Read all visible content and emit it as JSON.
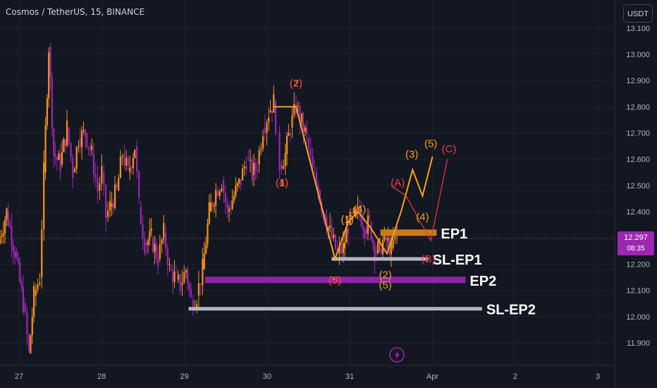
{
  "header": {
    "title": "Cosmos / TetherUS, 15, BINANCE",
    "currency_label": "USDT"
  },
  "price_tag": {
    "price": "12.297",
    "countdown": "08:35"
  },
  "colors": {
    "background": "#131722",
    "grid": "#1e222d",
    "axis_text": "#b2b5be",
    "candle_up": "#f7931a",
    "candle_down": "#9c27b0",
    "wave_orange": "#f7a21b",
    "wave_red": "#f23645",
    "ep1": "#c77c1a",
    "ep2": "#8e24aa",
    "sl": "#b2b5be",
    "price_line": "#9c27b0"
  },
  "icons": {
    "lightning": "lightning-icon"
  },
  "chart_data": {
    "type": "candlestick",
    "title": "Cosmos / TetherUS, 15, BINANCE",
    "x_axis": {
      "ticks": [
        {
          "label": "27",
          "day": 27
        },
        {
          "label": "28",
          "day": 28
        },
        {
          "label": "29",
          "day": 29
        },
        {
          "label": "30",
          "day": 30
        },
        {
          "label": "31",
          "day": 31
        },
        {
          "label": "Apr",
          "day": 32
        },
        {
          "label": "2",
          "day": 33
        },
        {
          "label": "3",
          "day": 34
        }
      ]
    },
    "y_axis": {
      "ticks": [
        "13.100",
        "13.000",
        "12.900",
        "12.800",
        "12.700",
        "12.600",
        "12.500",
        "12.400",
        "12.300",
        "12.200",
        "12.100",
        "12.000",
        "11.900"
      ],
      "range": [
        11.82,
        13.12
      ]
    },
    "price_path": [
      [
        26.75,
        12.28
      ],
      [
        26.85,
        12.4
      ],
      [
        26.95,
        12.25
      ],
      [
        27.05,
        12.05
      ],
      [
        27.12,
        11.86
      ],
      [
        27.18,
        12.08
      ],
      [
        27.25,
        12.15
      ],
      [
        27.3,
        12.55
      ],
      [
        27.36,
        13.03
      ],
      [
        27.42,
        12.62
      ],
      [
        27.5,
        12.58
      ],
      [
        27.58,
        12.72
      ],
      [
        27.65,
        12.55
      ],
      [
        27.72,
        12.68
      ],
      [
        27.8,
        12.7
      ],
      [
        27.88,
        12.62
      ],
      [
        27.95,
        12.48
      ],
      [
        28.0,
        12.55
      ],
      [
        28.05,
        12.38
      ],
      [
        28.1,
        12.42
      ],
      [
        28.18,
        12.48
      ],
      [
        28.25,
        12.62
      ],
      [
        28.32,
        12.55
      ],
      [
        28.4,
        12.65
      ],
      [
        28.45,
        12.42
      ],
      [
        28.52,
        12.28
      ],
      [
        28.6,
        12.3
      ],
      [
        28.68,
        12.22
      ],
      [
        28.75,
        12.32
      ],
      [
        28.82,
        12.18
      ],
      [
        28.9,
        12.14
      ],
      [
        28.95,
        12.12
      ],
      [
        29.02,
        12.18
      ],
      [
        29.08,
        12.06
      ],
      [
        29.15,
        12.08
      ],
      [
        29.22,
        12.18
      ],
      [
        29.3,
        12.4
      ],
      [
        29.38,
        12.48
      ],
      [
        29.45,
        12.52
      ],
      [
        29.52,
        12.4
      ],
      [
        29.6,
        12.46
      ],
      [
        29.68,
        12.52
      ],
      [
        29.75,
        12.6
      ],
      [
        29.82,
        12.54
      ],
      [
        29.88,
        12.58
      ],
      [
        29.95,
        12.72
      ],
      [
        30.02,
        12.78
      ],
      [
        30.08,
        12.82
      ],
      [
        30.15,
        12.58
      ],
      [
        30.22,
        12.62
      ],
      [
        30.28,
        12.72
      ],
      [
        30.35,
        12.8
      ],
      [
        30.42,
        12.74
      ],
      [
        30.48,
        12.68
      ],
      [
        30.55,
        12.55
      ],
      [
        30.62,
        12.48
      ],
      [
        30.7,
        12.38
      ],
      [
        30.78,
        12.3
      ],
      [
        30.85,
        12.24
      ],
      [
        30.92,
        12.26
      ],
      [
        30.98,
        12.35
      ],
      [
        31.05,
        12.38
      ],
      [
        31.12,
        12.4
      ],
      [
        31.18,
        12.34
      ],
      [
        31.24,
        12.36
      ],
      [
        31.3,
        12.25
      ],
      [
        31.36,
        12.26
      ],
      [
        31.42,
        12.3
      ],
      [
        31.5,
        12.26
      ],
      [
        31.57,
        12.32
      ]
    ],
    "orange_waves": [
      {
        "points": [
          [
            30.08,
            12.8
          ],
          [
            30.35,
            12.8
          ],
          [
            30.82,
            12.22
          ],
          [
            30.98,
            12.36
          ],
          [
            31.1,
            12.4
          ],
          [
            31.25,
            12.34
          ],
          [
            31.45,
            12.24
          ],
          [
            31.62,
            12.4
          ],
          [
            31.76,
            12.56
          ],
          [
            31.88,
            12.46
          ],
          [
            32.0,
            12.61
          ]
        ]
      }
    ],
    "red_waves": [
      {
        "points": [
          [
            31.5,
            12.5
          ],
          [
            31.68,
            12.46
          ],
          [
            31.82,
            12.38
          ],
          [
            31.98,
            12.29
          ],
          [
            32.18,
            12.6
          ]
        ]
      }
    ],
    "wave_labels": [
      {
        "text": "(2)",
        "x": 30.35,
        "y": 12.89,
        "color": "orange"
      },
      {
        "text": "(1)",
        "x": 30.35,
        "y": 12.89,
        "color": "red"
      },
      {
        "text": "(1)",
        "x": 30.18,
        "y": 12.51,
        "color": "orange"
      },
      {
        "text": "(4)",
        "x": 30.18,
        "y": 12.51,
        "color": "red"
      },
      {
        "text": "(1)",
        "x": 30.97,
        "y": 12.37,
        "color": "orange"
      },
      {
        "text": "(4)",
        "x": 31.12,
        "y": 12.41,
        "color": "orange"
      },
      {
        "text": "(5)",
        "x": 30.82,
        "y": 12.14,
        "color": "orange"
      },
      {
        "text": "(3)",
        "x": 30.82,
        "y": 12.14,
        "color": "red"
      },
      {
        "text": "(2)",
        "x": 31.43,
        "y": 12.16,
        "color": "orange"
      },
      {
        "text": "(5)",
        "x": 31.43,
        "y": 12.12,
        "color": "orange"
      },
      {
        "text": "(3)",
        "x": 31.75,
        "y": 12.62,
        "color": "orange"
      },
      {
        "text": "(5)",
        "x": 31.98,
        "y": 12.66,
        "color": "orange"
      },
      {
        "text": "(4)",
        "x": 31.88,
        "y": 12.38,
        "color": "orange"
      },
      {
        "text": "(A)",
        "x": 31.58,
        "y": 12.51,
        "color": "red"
      },
      {
        "text": "(B)",
        "x": 31.95,
        "y": 12.22,
        "color": "red"
      },
      {
        "text": "(C)",
        "x": 32.2,
        "y": 12.64,
        "color": "red"
      }
    ],
    "levels": [
      {
        "name": "EP1",
        "price": 12.32,
        "from": 31.37,
        "to": 32.05,
        "color": "ep1",
        "thick": 9,
        "label": "EP1"
      },
      {
        "name": "SL-EP1",
        "price": 12.22,
        "from": 30.78,
        "to": 31.95,
        "color": "sl",
        "thick": 5,
        "label": "SL-EP1"
      },
      {
        "name": "EP2",
        "price": 12.14,
        "from": 29.25,
        "to": 32.4,
        "color": "ep2",
        "thick": 9,
        "label": "EP2"
      },
      {
        "name": "SL-EP2",
        "price": 12.03,
        "from": 29.05,
        "to": 32.6,
        "color": "sl",
        "thick": 5,
        "label": "SL-EP2"
      }
    ],
    "current_price": 12.297
  }
}
